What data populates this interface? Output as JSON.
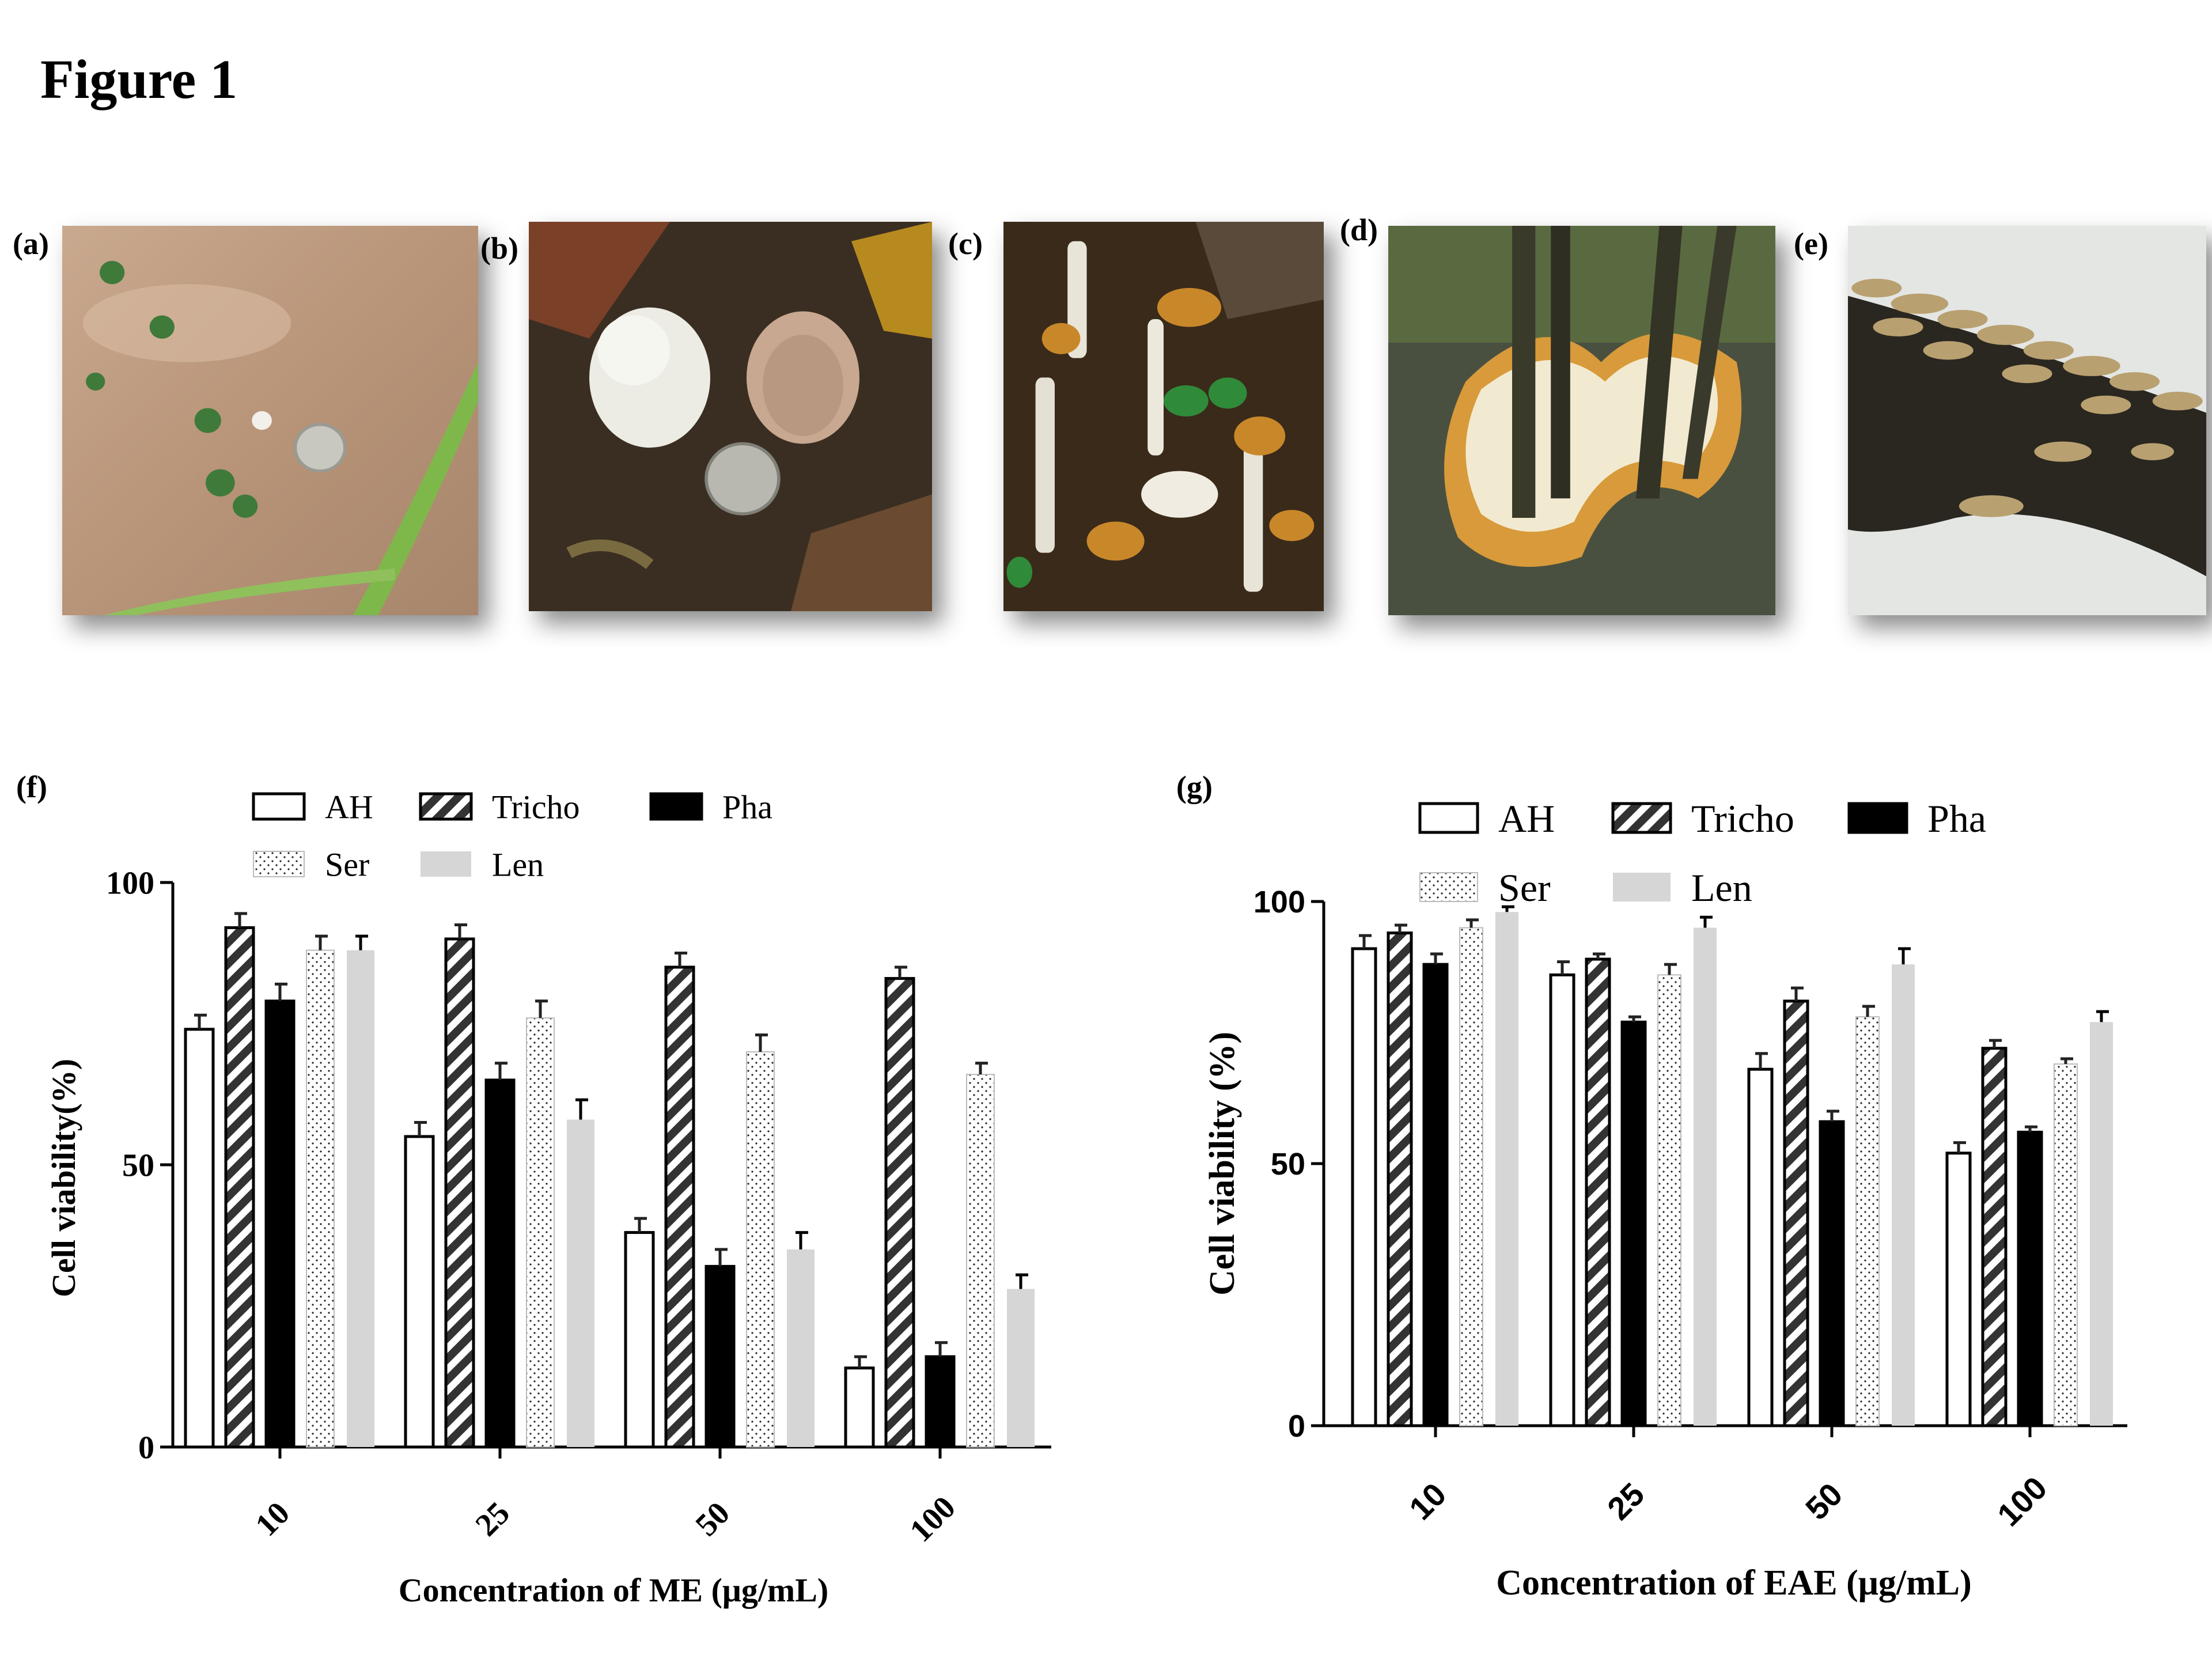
{
  "figure_title": "Figure 1",
  "panels": {
    "a": "(a)",
    "b": "(b)",
    "c": "(c)",
    "d": "(d)",
    "e": "(e)",
    "f": "(f)",
    "g": "(g)"
  },
  "colors": {
    "AH": "#ffffff",
    "Tricho": "#333333",
    "Pha": "#000000",
    "Ser": "#ffffff",
    "Len": "#d6d6d6"
  },
  "chart_data": [
    {
      "type": "bar",
      "panel": "f",
      "categories": [
        "10",
        "25",
        "50",
        "100"
      ],
      "xlabel": "Concentration of ME (μg/mL)",
      "ylabel": "Cell viability(%)",
      "ylim": [
        0,
        100
      ],
      "yticks": [
        0,
        50,
        100
      ],
      "legend_position": "top",
      "series": [
        {
          "name": "AH",
          "values": [
            74,
            55,
            38,
            14
          ],
          "errors": [
            2.5,
            2.5,
            2.5,
            2
          ]
        },
        {
          "name": "Tricho",
          "values": [
            92,
            90,
            85,
            83
          ],
          "errors": [
            2.5,
            2.5,
            2.5,
            2
          ]
        },
        {
          "name": "Pha",
          "values": [
            79,
            65,
            32,
            16
          ],
          "errors": [
            3,
            3,
            3,
            2.5
          ]
        },
        {
          "name": "Ser",
          "values": [
            88,
            76,
            70,
            66
          ],
          "errors": [
            2.5,
            3,
            3,
            2
          ]
        },
        {
          "name": "Len",
          "values": [
            88,
            58,
            35,
            28
          ],
          "errors": [
            2.5,
            3.5,
            3,
            2.5
          ]
        }
      ]
    },
    {
      "type": "bar",
      "panel": "g",
      "categories": [
        "10",
        "25",
        "50",
        "100"
      ],
      "xlabel": "Concentration of EAE (μg/mL)",
      "ylabel": "Cell viability (%)",
      "ylim": [
        0,
        100
      ],
      "yticks": [
        0,
        50,
        100
      ],
      "legend_position": "top",
      "series": [
        {
          "name": "AH",
          "values": [
            91,
            86,
            68,
            52
          ],
          "errors": [
            2.5,
            2.5,
            3,
            2
          ]
        },
        {
          "name": "Tricho",
          "values": [
            94,
            89,
            81,
            72
          ],
          "errors": [
            1.5,
            1,
            2.5,
            1.5
          ]
        },
        {
          "name": "Pha",
          "values": [
            88,
            77,
            58,
            56
          ],
          "errors": [
            2,
            1,
            2,
            1
          ]
        },
        {
          "name": "Ser",
          "values": [
            95,
            86,
            78,
            69
          ],
          "errors": [
            1.5,
            2,
            2,
            1
          ]
        },
        {
          "name": "Len",
          "values": [
            98,
            95,
            88,
            77
          ],
          "errors": [
            1,
            2,
            3,
            2
          ]
        }
      ]
    }
  ]
}
